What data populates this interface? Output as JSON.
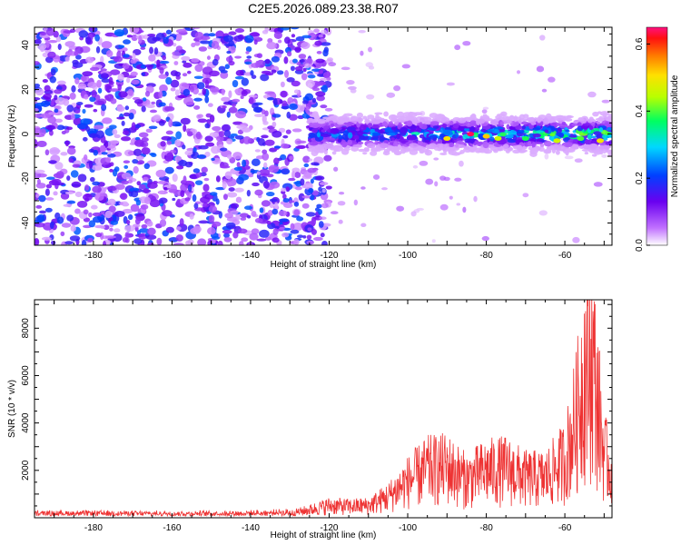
{
  "title": "C2E5.2026.089.23.38.R07",
  "chart_data": [
    {
      "type": "heatmap",
      "xlabel": "Height of straight line (km)",
      "ylabel": "Frequency (Hz)",
      "xlim": [
        -195,
        -48
      ],
      "ylim": [
        -50,
        48
      ],
      "xticks": [
        -180,
        -160,
        -140,
        -120,
        -100,
        -80,
        -60
      ],
      "yticks": [
        -40,
        -20,
        0,
        20,
        40
      ],
      "colorbar": {
        "label": "Normalized spectral amplitude",
        "range": [
          0.0,
          0.65
        ],
        "ticks": [
          0.0,
          0.2,
          0.4,
          0.6
        ],
        "colormap": "rainbow (white, violet, blue, cyan, green, yellow, orange, red, magenta)"
      },
      "features": {
        "noise_region_x": [
          -195,
          -125
        ],
        "noise_amplitude_approx": 0.12,
        "signal_band_x": [
          -125,
          -48
        ],
        "signal_band_center_hz": 0,
        "signal_band_halfwidth_hz": 7,
        "peak_amplitude_x": -84,
        "peak_amplitude": 0.65
      },
      "grid": false
    },
    {
      "type": "line",
      "xlabel": "Height of straight line (km)",
      "ylabel": "SNR (10 * v/v)",
      "xlim": [
        -195,
        -48
      ],
      "ylim": [
        0,
        9200
      ],
      "xticks": [
        -180,
        -160,
        -140,
        -120,
        -100,
        -80,
        -60
      ],
      "yticks": [
        2000,
        4000,
        6000,
        8000
      ],
      "color": "#ee3333",
      "series": [
        {
          "x": [
            -195,
            -180,
            -160,
            -140,
            -130,
            -125,
            -120,
            -115,
            -110,
            -105,
            -100,
            -95,
            -90,
            -85,
            -80,
            -75,
            -70,
            -65,
            -60,
            -57,
            -55,
            -53,
            -51,
            -50,
            -48
          ],
          "y": [
            200,
            200,
            180,
            200,
            250,
            450,
            700,
            650,
            700,
            1200,
            2100,
            2800,
            2900,
            2200,
            2700,
            2800,
            2300,
            2300,
            3300,
            5800,
            8600,
            9000,
            5500,
            3700,
            2500
          ]
        }
      ]
    }
  ]
}
